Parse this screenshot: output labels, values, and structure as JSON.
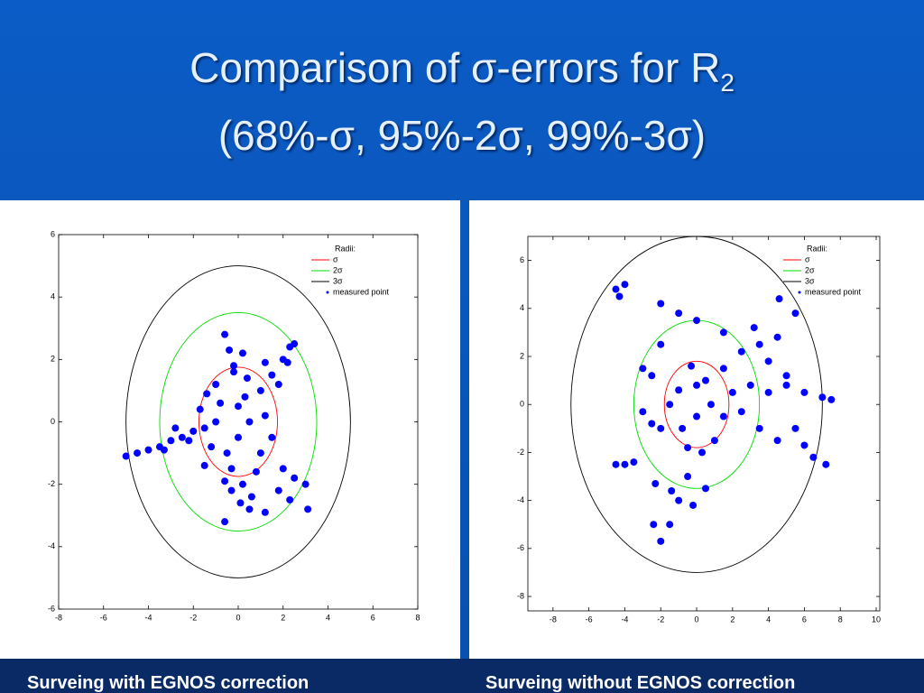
{
  "slide": {
    "title": "Comparison of σ-errors for R",
    "title_subscript": "2",
    "subtitle": "(68%-σ, 95%-2σ, 99%-3σ)"
  },
  "chart_data": [
    {
      "type": "scatter",
      "caption": "Surveing with EGNOS correction",
      "legend_title": "Radii:",
      "xlim": [
        -8,
        8
      ],
      "xticks": [
        -8,
        -6,
        -4,
        -2,
        0,
        2,
        4,
        6,
        8
      ],
      "ylim": [
        -6,
        6
      ],
      "yticks": [
        -6,
        -4,
        -2,
        0,
        2,
        4,
        6
      ],
      "series": [
        {
          "name": "σ",
          "color": "#ff0000",
          "radius": 1.75
        },
        {
          "name": "2σ",
          "color": "#00dd00",
          "radius": 3.5
        },
        {
          "name": "3σ",
          "color": "#000000",
          "radius": 5
        },
        {
          "name": "measured point",
          "color": "#0000ff",
          "x": [
            0,
            0.5,
            -0.5,
            1,
            -1,
            0.3,
            -0.3,
            1.2,
            -1.2,
            0.8,
            0,
            -0.8,
            1.5,
            0.2,
            -0.6,
            1,
            0.6,
            -1.5,
            0.4,
            -0.2,
            -2,
            -2.5,
            -3,
            -3.5,
            -4,
            -4.5,
            -5,
            -2.8,
            -3.3,
            1.5,
            2,
            2.3,
            2.5,
            1.8,
            2.2,
            1.2,
            -0.4,
            -0.6,
            0.2,
            -0.2,
            0.5,
            -0.6,
            0.1,
            1.2,
            -0.3,
            2,
            2.5,
            3,
            3.1,
            2.3,
            1.8,
            -1.7,
            -2.2,
            -1.5,
            -1,
            -1.4
          ],
          "values": [
            -0.5,
            0,
            -1,
            -1,
            0,
            0.8,
            -1.5,
            0.2,
            -0.8,
            -1.6,
            0.5,
            0.6,
            -0.5,
            -2,
            -1.9,
            1,
            -2.4,
            -0.2,
            1.4,
            1.8,
            -0.3,
            -0.5,
            -0.6,
            -0.8,
            -0.9,
            -1,
            -1.1,
            -0.2,
            -0.9,
            1.5,
            2,
            2.4,
            2.5,
            1.2,
            1.9,
            1.9,
            2.3,
            2.8,
            2.2,
            1.6,
            -2.8,
            -3.2,
            -2.6,
            -2.9,
            -2.2,
            -1.5,
            -1.8,
            -2,
            -2.8,
            -2.5,
            -2.2,
            0.4,
            -0.6,
            -1.4,
            1.2,
            0.9
          ]
        }
      ]
    },
    {
      "type": "scatter",
      "caption": "Surveing without EGNOS correction",
      "legend_title": "Radii:",
      "xlim": [
        -9.4,
        10.2
      ],
      "xticks": [
        -8,
        -6,
        -4,
        -2,
        0,
        2,
        4,
        6,
        8,
        10
      ],
      "ylim": [
        -8.6,
        7
      ],
      "yticks": [
        -8,
        -6,
        -4,
        -2,
        0,
        2,
        4,
        6
      ],
      "series": [
        {
          "name": "σ",
          "color": "#ff0000",
          "radius": 1.8
        },
        {
          "name": "2σ",
          "color": "#00dd00",
          "radius": 3.5
        },
        {
          "name": "3σ",
          "color": "#000000",
          "radius": 7
        },
        {
          "name": "measured point",
          "color": "#0000ff",
          "x": [
            0,
            0.8,
            -0.8,
            1.5,
            -1.5,
            0.5,
            -0.5,
            2,
            -2,
            1,
            0,
            -1,
            2.5,
            -2.5,
            3,
            1.5,
            -0.3,
            3.5,
            -3,
            0.3,
            4,
            5,
            6,
            7,
            7.5,
            4.5,
            5.5,
            6,
            6.5,
            7.2,
            4,
            5,
            2.5,
            3.5,
            4.5,
            5.5,
            4.6,
            3.2,
            -2,
            -1,
            0,
            1.5,
            -4.5,
            -4.3,
            -4,
            -3.5,
            -4,
            -4.5,
            -2.5,
            -3,
            -2,
            -0.5,
            -1,
            -1.5,
            -2,
            -2.4,
            0.5,
            -2.3,
            -0.2,
            -1.4
          ],
          "values": [
            -0.5,
            0,
            -1,
            -0.5,
            0,
            1,
            -1.8,
            0.5,
            -1,
            -1.5,
            0.8,
            0.6,
            -0.3,
            -0.8,
            0.8,
            1.5,
            1.6,
            -1,
            -0.3,
            -2,
            0.5,
            0.8,
            0.5,
            0.3,
            0.2,
            -1.5,
            -1,
            -1.7,
            -2.2,
            -2.5,
            1.8,
            1.2,
            2.2,
            2.5,
            2.8,
            3.8,
            4.4,
            3.2,
            4.2,
            3.8,
            3.5,
            3,
            4.8,
            4.5,
            5,
            -2.4,
            -2.5,
            -2.5,
            1.2,
            1.5,
            2.5,
            -3,
            -4,
            -5,
            -5.7,
            -5,
            -3.5,
            -3.3,
            -4.2,
            -3.6
          ]
        }
      ]
    }
  ]
}
